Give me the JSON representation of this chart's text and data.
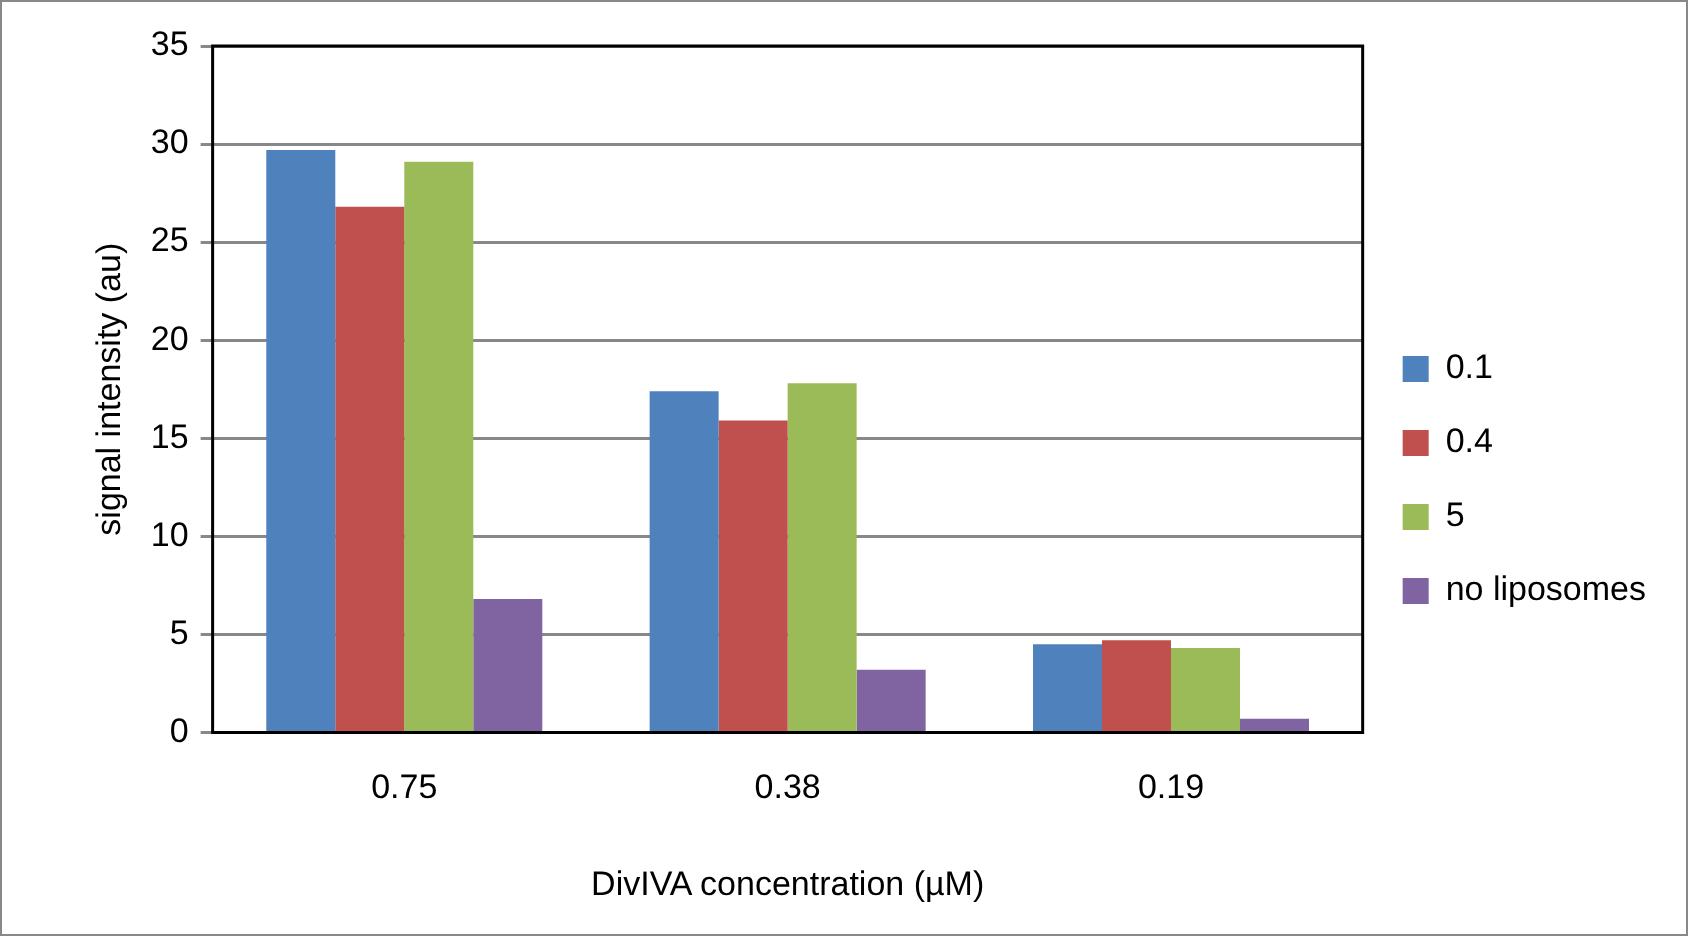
{
  "chart_data": {
    "type": "bar",
    "xlabel": "DivIVA concentration (µM)",
    "ylabel": "signal intensity (au)",
    "categories": [
      "0.75",
      "0.38",
      "0.19"
    ],
    "series": [
      {
        "name": "0.1",
        "color": "#4f81bd",
        "values": [
          29.7,
          17.4,
          4.5
        ]
      },
      {
        "name": "0.4",
        "color": "#c0504d",
        "values": [
          26.8,
          15.9,
          4.7
        ]
      },
      {
        "name": "5",
        "color": "#9bbb59",
        "values": [
          29.1,
          17.8,
          4.3
        ]
      },
      {
        "name": "no liposomes",
        "color": "#8064a2",
        "values": [
          6.8,
          3.2,
          0.7
        ]
      }
    ],
    "ylim": [
      0,
      35
    ],
    "yticks": [
      0,
      5,
      10,
      15,
      20,
      25,
      30,
      35
    ],
    "grid": "y",
    "legend": "right"
  }
}
